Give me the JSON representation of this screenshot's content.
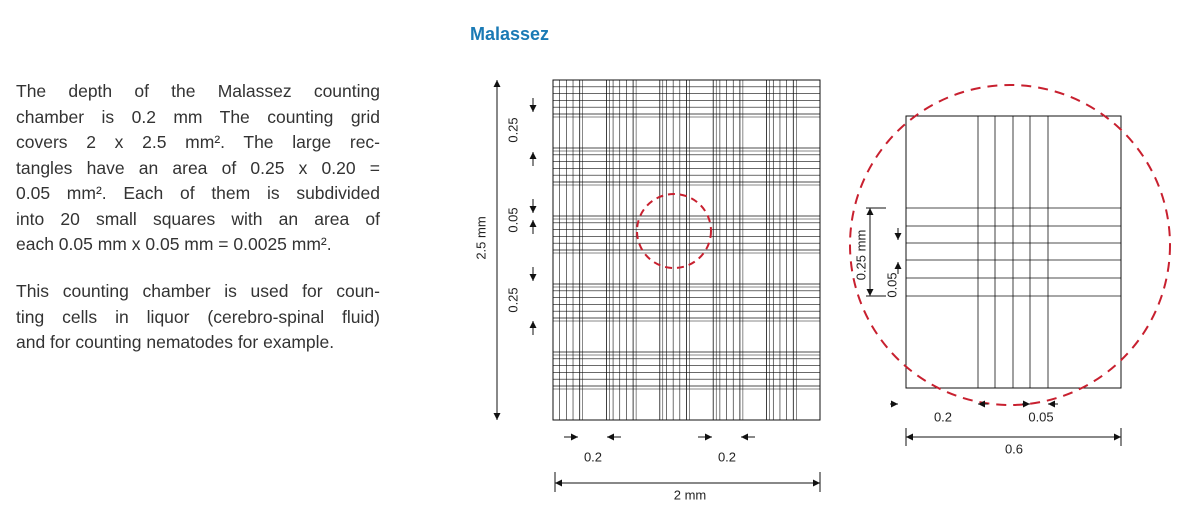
{
  "title": "Malassez",
  "description": {
    "paragraphs": [
      [
        "The depth of the Malassez counting",
        "chamber is 0.2 mm The counting grid",
        "covers 2 x 2.5 mm². The large rec-",
        "tangles have an area of 0.25 x 0.20 =",
        "0.05 mm². Each of them is subdivided",
        "into 20 small squares with an area of",
        "each 0.05 mm x 0.05 mm = 0.0025 mm²."
      ],
      [
        "This counting chamber is used for coun-",
        "ting cells in liquor (cerebro-spinal fluid)",
        "and for counting nematodes for example."
      ]
    ]
  },
  "grid_diagram": {
    "height_label": "2.5 mm",
    "row_labels": [
      "0.25",
      "0.05",
      "0.25"
    ],
    "column_labels": [
      "0.2",
      "0.2"
    ],
    "width_label": "2 mm"
  },
  "detail_diagram": {
    "height_label": "0.25 mm",
    "row_label": "0.05",
    "column_labels": [
      "0.2",
      "0.05"
    ],
    "width_label": "0.6"
  }
}
